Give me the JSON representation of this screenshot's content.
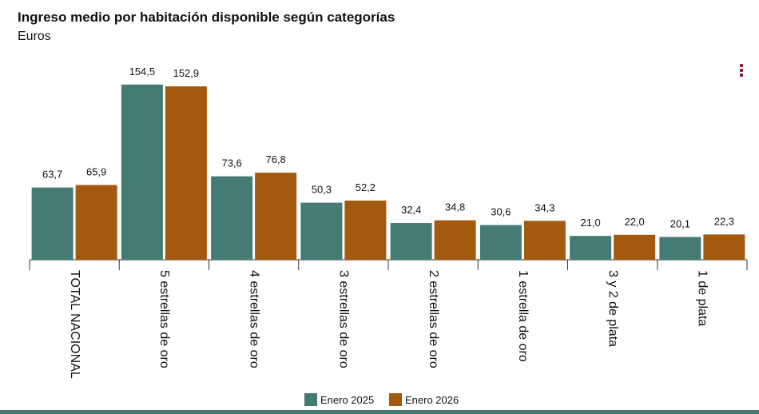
{
  "chart_data": {
    "type": "bar",
    "title": "Ingreso medio por habitación disponible según categorías",
    "subtitle": "Euros",
    "categories": [
      "TOTAL NACIONAL",
      "5 estrellas de oro",
      "4 estrellas de oro",
      "3 estrellas de oro",
      "2 estrellas de oro",
      "1 estrella de oro",
      "3 y 2 de plata",
      "1 de plata"
    ],
    "series": [
      {
        "name": "Enero 2025",
        "color": "#457b73",
        "values": [
          63.7,
          154.5,
          73.6,
          50.3,
          32.4,
          30.6,
          21.0,
          20.1
        ],
        "value_labels": [
          "63,7",
          "154,5",
          "73,6",
          "50,3",
          "32,4",
          "30,6",
          "21,0",
          "20,1"
        ]
      },
      {
        "name": "Enero 2026",
        "color": "#a35a0f",
        "values": [
          65.9,
          152.9,
          76.8,
          52.2,
          34.8,
          34.3,
          22.0,
          22.3
        ],
        "value_labels": [
          "65,9",
          "152,9",
          "76,8",
          "52,2",
          "34,8",
          "34,3",
          "22,0",
          "22,3"
        ]
      }
    ],
    "ylim": [
      0,
      160
    ]
  }
}
